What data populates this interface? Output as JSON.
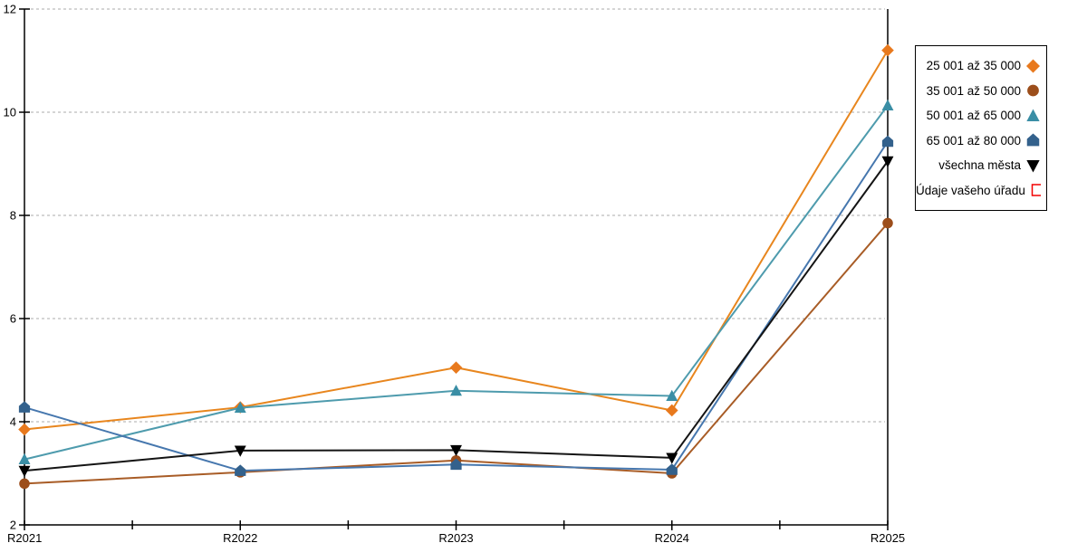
{
  "chart_data": {
    "type": "line",
    "title": "",
    "xlabel": "",
    "ylabel": "",
    "categories": [
      "R2021",
      "R2022",
      "R2023",
      "R2024",
      "R2025"
    ],
    "ylim": [
      2,
      12
    ],
    "y_ticks": [
      2,
      4,
      6,
      8,
      10,
      12
    ],
    "grid": "horizontal-dashed",
    "legend_position": "top-right-outside",
    "series": [
      {
        "name": "25 001 až 35 000",
        "marker": "diamond",
        "marker_color": "#E8791D",
        "line_color": "#E8861E",
        "values": [
          3.85,
          4.28,
          5.05,
          4.22,
          11.2
        ]
      },
      {
        "name": "35 001 až 50 000",
        "marker": "circle",
        "marker_color": "#9C4E1B",
        "line_color": "#A85C26",
        "values": [
          2.8,
          3.02,
          3.25,
          3.0,
          7.85
        ]
      },
      {
        "name": "50 001 až 65 000",
        "marker": "triangle-up",
        "marker_color": "#3A8EA5",
        "line_color": "#4E9BAD",
        "values": [
          3.27,
          4.27,
          4.6,
          4.5,
          10.13
        ]
      },
      {
        "name": "65 001 až 80 000",
        "marker": "pentagon",
        "marker_color": "#33618C",
        "line_color": "#4677AE",
        "values": [
          4.28,
          3.05,
          3.17,
          3.07,
          9.43
        ]
      },
      {
        "name": "všechna města",
        "marker": "triangle-down",
        "marker_color": "#000000",
        "line_color": "#141414",
        "values": [
          3.05,
          3.44,
          3.45,
          3.3,
          9.05
        ]
      },
      {
        "name": "Údaje vašeho úřadu",
        "marker": "square-open",
        "marker_color": "#F20000",
        "line_color": "#F20000",
        "values": []
      }
    ],
    "colors": {
      "grid": "#ABABAB",
      "axis": "#000000",
      "background": "#FFFFFF"
    }
  }
}
